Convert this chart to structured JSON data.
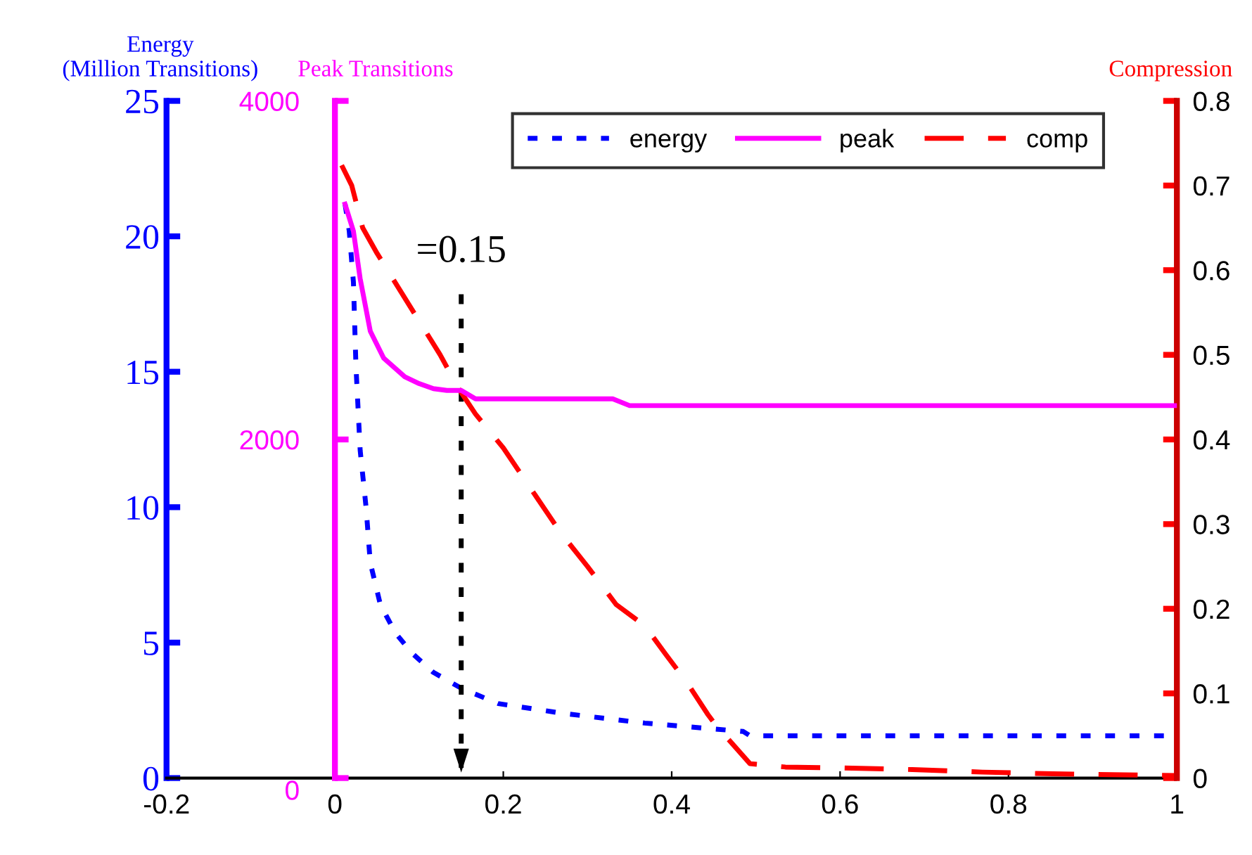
{
  "chart_data": {
    "type": "line",
    "xlim": [
      -0.2,
      1
    ],
    "xticks": [
      -0.2,
      0,
      0.2,
      0.4,
      0.6,
      0.8,
      1
    ],
    "ylabel": "Energy\n(Million Transitions)",
    "ylim": [
      0,
      25
    ],
    "yticks": [
      0,
      5,
      10,
      15,
      20,
      25
    ],
    "y2label": "Compression",
    "y2lim": [
      0,
      0.8
    ],
    "y2ticks": [
      0,
      0.1,
      0.2,
      0.3,
      0.4,
      0.5,
      0.6,
      0.7,
      0.8
    ],
    "y3label": "Peak Transitions",
    "y3lim": [
      0,
      4000
    ],
    "y3ticks": [
      0,
      2000,
      4000
    ],
    "legend": "top right",
    "grid": false,
    "series": [
      {
        "name": "energy",
        "color": "#0000ff",
        "line_style": "dotted",
        "x": [
          0.012,
          0.017,
          0.022,
          0.025,
          0.03,
          0.037,
          0.042,
          0.054,
          0.072,
          0.092,
          0.117,
          0.151,
          0.194,
          0.268,
          0.368,
          0.485,
          0.493,
          1.0
        ],
        "values": [
          21.2,
          20.2,
          18.3,
          15.2,
          12.1,
          10.0,
          7.95,
          6.4,
          5.35,
          4.6,
          3.9,
          3.3,
          2.75,
          2.4,
          2.03,
          1.72,
          1.56,
          1.56
        ]
      },
      {
        "name": "peak",
        "color": "#ff00ff",
        "line_style": "solid",
        "x": [
          0.012,
          0.022,
          0.03,
          0.042,
          0.058,
          0.083,
          0.1,
          0.117,
          0.133,
          0.15,
          0.167,
          0.33,
          0.35,
          1.0
        ],
        "values": [
          3390,
          3230,
          2950,
          2640,
          2480,
          2370,
          2330,
          2300,
          2290,
          2290,
          2240,
          2240,
          2200,
          2200
        ],
        "axis": "y3"
      },
      {
        "name": "comp",
        "color": "#ff0000",
        "line_style": "dashed",
        "x": [
          0.008,
          0.02,
          0.033,
          0.05,
          0.075,
          0.1,
          0.125,
          0.147,
          0.167,
          0.2,
          0.234,
          0.268,
          0.3,
          0.334,
          0.368,
          0.393,
          0.418,
          0.443,
          0.452,
          0.493,
          0.535,
          0.602,
          0.686,
          0.769,
          0.853,
          1.0
        ],
        "values": [
          0.724,
          0.7,
          0.65,
          0.62,
          0.58,
          0.54,
          0.5,
          0.46,
          0.43,
          0.39,
          0.34,
          0.29,
          0.25,
          0.205,
          0.18,
          0.146,
          0.113,
          0.075,
          0.063,
          0.017,
          0.013,
          0.012,
          0.01,
          0.007,
          0.005,
          0.003
        ],
        "axis": "y2"
      }
    ],
    "ref_lines": [
      {
        "axis": "x",
        "value": 0.15,
        "label": "=0.15",
        "color": "#000000",
        "line_style": "dotted"
      }
    ]
  }
}
